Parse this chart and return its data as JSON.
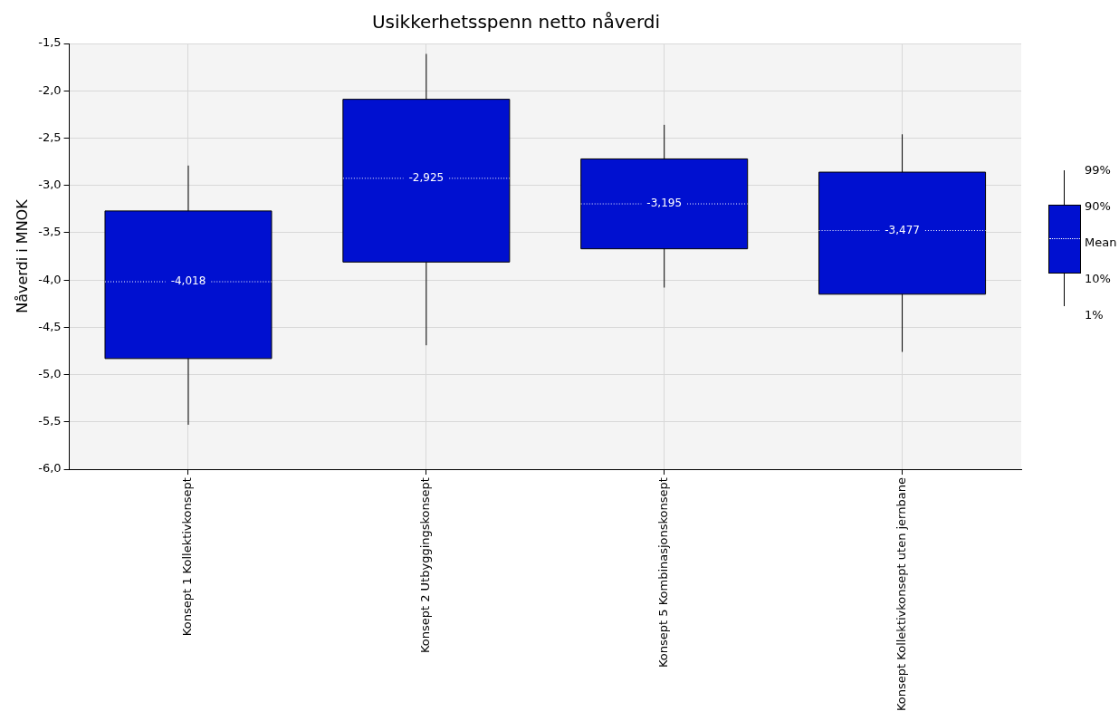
{
  "chart_data": {
    "type": "box",
    "title": "Usikkerhetsspenn netto nåverdi",
    "ylabel": "Nåverdi i MNOK",
    "categories": [
      "Konsept 1 Kollektivkonsept",
      "Konsept 2 Utbyggingskonsept",
      "Konsept 5 Kombinasjonskonsept",
      "Konsept Kollektivkonsept uten jernbane"
    ],
    "series": [
      {
        "color": "#0010d0",
        "boxes": [
          {
            "low": -5.53,
            "q1": -4.83,
            "median": null,
            "q3": -3.27,
            "high": -2.79,
            "mean": -4.018
          },
          {
            "low": -4.69,
            "q1": -3.81,
            "median": null,
            "q3": -2.09,
            "high": -1.61,
            "mean": -2.925
          },
          {
            "low": -4.08,
            "q1": -3.67,
            "median": null,
            "q3": -2.72,
            "high": -2.36,
            "mean": -3.195
          },
          {
            "low": -4.76,
            "q1": -4.15,
            "median": null,
            "q3": -2.86,
            "high": -2.46,
            "mean": -3.477
          }
        ],
        "value_labels": [
          "-4,018",
          "-2,925",
          "-3,195",
          "-3,477"
        ]
      }
    ],
    "ylim": [
      -6,
      -1.5
    ],
    "yticks": [
      {
        "value": -6,
        "label": "-6,0"
      },
      {
        "value": -5.5,
        "label": "-5,5"
      },
      {
        "value": -5,
        "label": "-5,0"
      },
      {
        "value": -4.5,
        "label": "-4,5"
      },
      {
        "value": -4,
        "label": "-4,0"
      },
      {
        "value": -3.5,
        "label": "-3,5"
      },
      {
        "value": -3,
        "label": "-3,0"
      },
      {
        "value": -2.5,
        "label": "-2,5"
      },
      {
        "value": -2,
        "label": "-2,0"
      },
      {
        "value": -1.5,
        "label": "-1,5"
      }
    ],
    "grid": true,
    "annotations": [
      "99%",
      "90%",
      "Mean",
      "10%",
      "1%"
    ]
  }
}
